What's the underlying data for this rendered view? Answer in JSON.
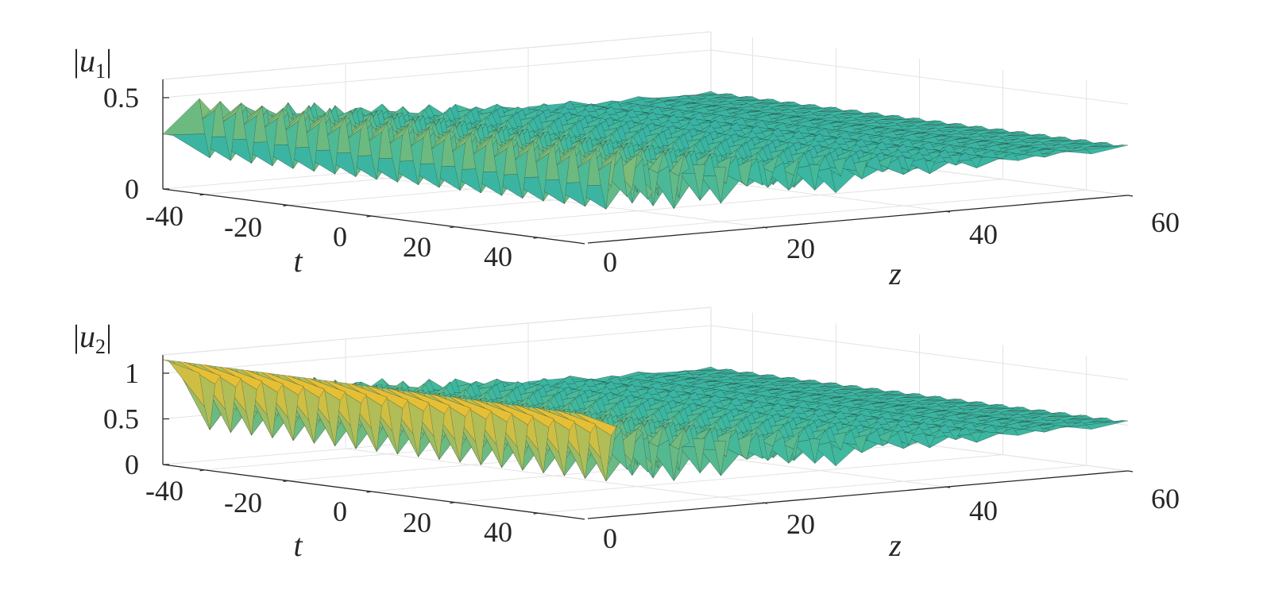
{
  "chart_data": [
    {
      "type": "surface",
      "zlabel": {
        "prefix": "|u",
        "sub": "1",
        "suffix": "|"
      },
      "xlabel": "t",
      "ylabel": "z",
      "x_ticks": [
        "-40",
        "-20",
        "0",
        "20",
        "40"
      ],
      "y_ticks": [
        "0",
        "20",
        "40",
        "60"
      ],
      "z_ticks": [
        "0",
        "0.5"
      ],
      "x_range": [
        -50,
        50
      ],
      "y_range": [
        0,
        60
      ],
      "z_range": [
        0,
        0.6
      ],
      "grid": true,
      "colormap": "parula",
      "t_values": [
        -50,
        -45,
        -40,
        -35,
        -30,
        -25,
        -20,
        -15,
        -10,
        -5,
        0,
        5,
        10,
        15,
        20,
        25,
        30,
        35,
        40,
        45,
        50
      ],
      "z_values": [
        0,
        4,
        8,
        12,
        16,
        20,
        24,
        28,
        32,
        36,
        40,
        44,
        48,
        52,
        56,
        60
      ],
      "features": {
        "initial_amplitude": 0.3,
        "peak_amplitude": 0.52,
        "trough_amplitude": 0.05,
        "final_amplitude": 0.3,
        "oscillation_period_t": 5
      }
    },
    {
      "type": "surface",
      "zlabel": {
        "prefix": "|u",
        "sub": "2",
        "suffix": "|"
      },
      "xlabel": "t",
      "ylabel": "z",
      "x_ticks": [
        "-40",
        "-20",
        "0",
        "20",
        "40"
      ],
      "y_ticks": [
        "0",
        "20",
        "40",
        "60"
      ],
      "z_ticks": [
        "0",
        "0.5",
        "1"
      ],
      "x_range": [
        -50,
        50
      ],
      "y_range": [
        0,
        60
      ],
      "z_range": [
        0,
        1.2
      ],
      "grid": true,
      "colormap": "parula",
      "t_values": [
        -50,
        -45,
        -40,
        -35,
        -30,
        -25,
        -20,
        -15,
        -10,
        -5,
        0,
        5,
        10,
        15,
        20,
        25,
        30,
        35,
        40,
        45,
        50
      ],
      "z_values": [
        0,
        4,
        8,
        12,
        16,
        20,
        24,
        28,
        32,
        36,
        40,
        44,
        48,
        52,
        56,
        60
      ],
      "features": {
        "initial_amplitude": 1.15,
        "peak_amplitude": 1.05,
        "trough_amplitude": 0.15,
        "final_amplitude": 0.6,
        "oscillation_period_t": 5
      }
    }
  ],
  "colors": {
    "axis": "#262626",
    "grid": "#e3e3e3",
    "surface_low": "#1f5fd6",
    "surface_mid": "#3cb8a0",
    "surface_high": "#f5c02c",
    "mesh": "#1a1a1a"
  }
}
